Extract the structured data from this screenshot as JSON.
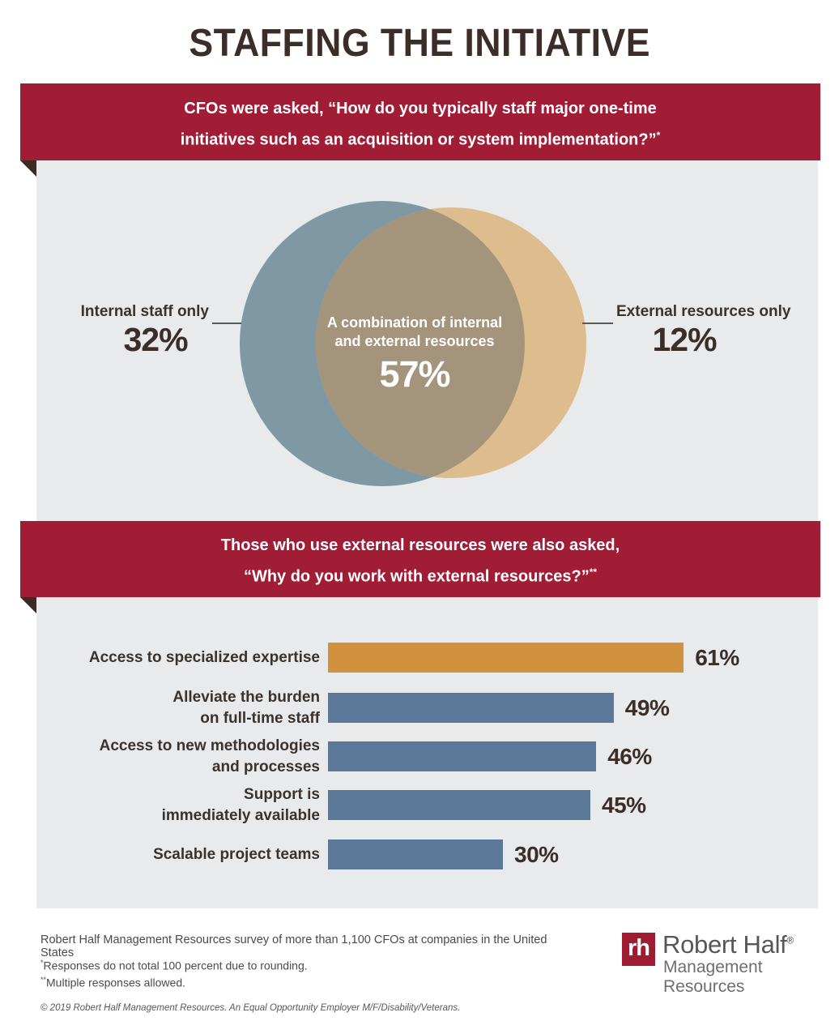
{
  "page": {
    "title": "STAFFING THE INITIATIVE"
  },
  "colors": {
    "banner": "#A11D36",
    "panel_bg": "#E9EAEB",
    "title_text": "#3B2E28",
    "label_text": "#3A332D",
    "banner_text": "#FFFFFF",
    "fold_triangle": "#3A2B25",
    "venn_left": "#7E99A4",
    "venn_right": "#DDBD8D",
    "venn_overlap": "#A4947C",
    "bar_highlight": "#D2913C",
    "bar_default": "#5C7899",
    "footer_text": "#4A4A4C",
    "logo_red": "#9E1D33",
    "logo_dark_gray": "#55575B",
    "logo_light_gray": "#6D6F72"
  },
  "section1": {
    "banner_line1": "CFOs were asked, “How do you typically staff major one-time",
    "banner_line2": "initiatives such as an acquisition or system implementation?”",
    "banner_footnote": "*"
  },
  "section2": {
    "banner_line1": "Those who use external resources were also asked,",
    "banner_line2": "“Why do you work with external resources?”",
    "banner_footnote": "**"
  },
  "chart_data": [
    {
      "type": "venn",
      "title": "CFOs were asked, “How do you typically staff major one-time initiatives such as an acquisition or system implementation?”*",
      "sets": [
        {
          "label": "Internal staff only",
          "value": 32,
          "color": "#7E99A4"
        },
        {
          "label": "A combination of internal\nand external resources",
          "value": 57,
          "color": "#A4947C"
        },
        {
          "label": "External resources only",
          "value": 12,
          "color": "#DDBD8D"
        }
      ]
    },
    {
      "type": "bar",
      "orientation": "horizontal",
      "title": "Those who use external resources were also asked, “Why do you work with external resources?”**",
      "categories": [
        "Access to specialized expertise",
        "Alleviate the burden\non full-time staff",
        "Access to new methodologies\nand processes",
        "Support is\nimmediately available",
        "Scalable project teams"
      ],
      "values": [
        61,
        49,
        46,
        45,
        30
      ],
      "unit": "%",
      "bar_colors": [
        "#D2913C",
        "#5C7899",
        "#5C7899",
        "#5C7899",
        "#5C7899"
      ],
      "xlim": [
        0,
        100
      ],
      "grid": false,
      "legend": "none"
    }
  ],
  "footer": {
    "survey_note": "Robert Half Management Resources survey of more than 1,100 CFOs at companies in the United States",
    "footnote1_marker": "*",
    "footnote1_text": "Responses do not total 100 percent due to rounding.",
    "footnote2_marker": "**",
    "footnote2_text": "Multiple responses allowed.",
    "copyright": "© 2019 Robert Half Management Resources. An Equal Opportunity Employer M/F/Disability/Veterans.",
    "logo": {
      "mark": "rh",
      "name": "Robert Half",
      "registered": "®",
      "division": "Management Resources"
    }
  }
}
